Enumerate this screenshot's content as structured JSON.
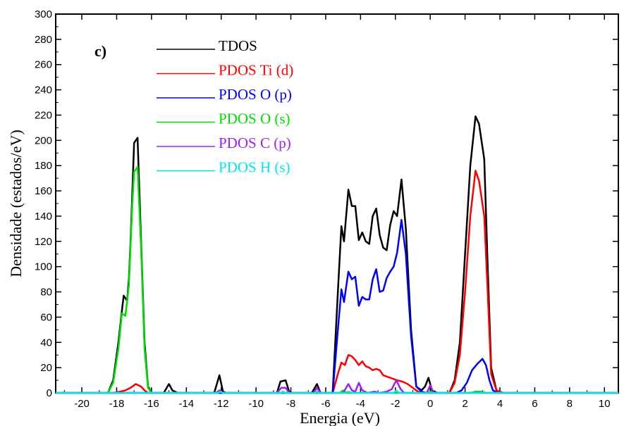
{
  "chart_data": {
    "type": "line",
    "panel_label": "c)",
    "xlabel": "Energia (eV)",
    "ylabel": "Densidade (estados/eV)",
    "xlim": [
      -21.5,
      10.8
    ],
    "ylim": [
      0,
      300
    ],
    "xticks": [
      -20,
      -18,
      -16,
      -14,
      -12,
      -10,
      -8,
      -6,
      -4,
      -2,
      0,
      2,
      4,
      6,
      8,
      10
    ],
    "yticks": [
      0,
      20,
      40,
      60,
      80,
      100,
      120,
      140,
      160,
      180,
      200,
      220,
      240,
      260,
      280,
      300
    ],
    "legend_position": "top-center",
    "series": [
      {
        "name": "TDOS",
        "color": "#000000",
        "points": [
          [
            -21.5,
            0
          ],
          [
            -18.5,
            0
          ],
          [
            -18.2,
            10
          ],
          [
            -17.9,
            40
          ],
          [
            -17.7,
            65
          ],
          [
            -17.6,
            77
          ],
          [
            -17.4,
            73
          ],
          [
            -17.3,
            90
          ],
          [
            -17.2,
            120
          ],
          [
            -17.0,
            198
          ],
          [
            -16.8,
            202
          ],
          [
            -16.6,
            120
          ],
          [
            -16.4,
            40
          ],
          [
            -16.2,
            5
          ],
          [
            -16.0,
            0
          ],
          [
            -15.3,
            0
          ],
          [
            -15.0,
            7
          ],
          [
            -14.8,
            2
          ],
          [
            -14.5,
            0
          ],
          [
            -12.4,
            0
          ],
          [
            -12.1,
            14
          ],
          [
            -11.9,
            1
          ],
          [
            -11.7,
            0
          ],
          [
            -8.8,
            0
          ],
          [
            -8.6,
            9
          ],
          [
            -8.3,
            10
          ],
          [
            -8.1,
            1
          ],
          [
            -7.9,
            0
          ],
          [
            -6.8,
            0
          ],
          [
            -6.5,
            7
          ],
          [
            -6.3,
            0
          ],
          [
            -5.6,
            0
          ],
          [
            -5.3,
            80
          ],
          [
            -5.1,
            132
          ],
          [
            -4.95,
            120
          ],
          [
            -4.7,
            161
          ],
          [
            -4.5,
            148
          ],
          [
            -4.3,
            148
          ],
          [
            -4.1,
            121
          ],
          [
            -3.9,
            127
          ],
          [
            -3.7,
            120
          ],
          [
            -3.5,
            118
          ],
          [
            -3.3,
            140
          ],
          [
            -3.1,
            146
          ],
          [
            -2.9,
            125
          ],
          [
            -2.7,
            115
          ],
          [
            -2.5,
            113
          ],
          [
            -2.3,
            133
          ],
          [
            -2.1,
            144
          ],
          [
            -1.9,
            140
          ],
          [
            -1.65,
            169
          ],
          [
            -1.4,
            130
          ],
          [
            -1.1,
            50
          ],
          [
            -0.8,
            5
          ],
          [
            -0.5,
            2
          ],
          [
            -0.3,
            5
          ],
          [
            -0.1,
            12
          ],
          [
            0.1,
            2
          ],
          [
            0.4,
            0
          ],
          [
            1.1,
            0
          ],
          [
            1.4,
            10
          ],
          [
            1.7,
            40
          ],
          [
            2.0,
            110
          ],
          [
            2.3,
            180
          ],
          [
            2.6,
            219
          ],
          [
            2.8,
            213
          ],
          [
            3.1,
            185
          ],
          [
            3.3,
            100
          ],
          [
            3.5,
            20
          ],
          [
            3.8,
            2
          ],
          [
            4.2,
            0
          ],
          [
            10.8,
            0
          ]
        ]
      },
      {
        "name": "PDOS Ti (d)",
        "color": "#ff0000",
        "points": [
          [
            -21.5,
            0
          ],
          [
            -18.2,
            0
          ],
          [
            -17.8,
            1
          ],
          [
            -17.5,
            2
          ],
          [
            -17.2,
            4
          ],
          [
            -16.9,
            7
          ],
          [
            -16.6,
            5
          ],
          [
            -16.4,
            2
          ],
          [
            -16.2,
            0
          ],
          [
            -5.6,
            0
          ],
          [
            -5.3,
            15
          ],
          [
            -5.1,
            24
          ],
          [
            -4.9,
            22
          ],
          [
            -4.7,
            30
          ],
          [
            -4.5,
            29
          ],
          [
            -4.3,
            26
          ],
          [
            -4.1,
            22
          ],
          [
            -3.9,
            25
          ],
          [
            -3.7,
            21
          ],
          [
            -3.5,
            20
          ],
          [
            -3.3,
            18
          ],
          [
            -3.1,
            19
          ],
          [
            -2.9,
            18
          ],
          [
            -2.7,
            14
          ],
          [
            -2.5,
            13
          ],
          [
            -2.3,
            12
          ],
          [
            -2.1,
            11
          ],
          [
            -1.9,
            10
          ],
          [
            -1.6,
            9
          ],
          [
            -1.3,
            7
          ],
          [
            -1.0,
            4
          ],
          [
            -0.7,
            1
          ],
          [
            -0.4,
            0
          ],
          [
            1.1,
            0
          ],
          [
            1.4,
            8
          ],
          [
            1.7,
            30
          ],
          [
            2.0,
            80
          ],
          [
            2.3,
            140
          ],
          [
            2.6,
            176
          ],
          [
            2.8,
            168
          ],
          [
            3.1,
            140
          ],
          [
            3.3,
            80
          ],
          [
            3.5,
            15
          ],
          [
            3.8,
            2
          ],
          [
            4.2,
            0
          ],
          [
            10.8,
            0
          ]
        ]
      },
      {
        "name": "PDOS O (p)",
        "color": "#0000ff",
        "points": [
          [
            -21.5,
            0
          ],
          [
            -5.6,
            0
          ],
          [
            -5.3,
            50
          ],
          [
            -5.1,
            82
          ],
          [
            -4.95,
            72
          ],
          [
            -4.7,
            96
          ],
          [
            -4.5,
            90
          ],
          [
            -4.3,
            92
          ],
          [
            -4.1,
            69
          ],
          [
            -3.9,
            76
          ],
          [
            -3.7,
            74
          ],
          [
            -3.5,
            74
          ],
          [
            -3.3,
            90
          ],
          [
            -3.1,
            98
          ],
          [
            -2.9,
            80
          ],
          [
            -2.7,
            81
          ],
          [
            -2.5,
            91
          ],
          [
            -2.3,
            96
          ],
          [
            -2.1,
            100
          ],
          [
            -1.9,
            111
          ],
          [
            -1.65,
            137
          ],
          [
            -1.4,
            110
          ],
          [
            -1.1,
            45
          ],
          [
            -0.8,
            5
          ],
          [
            -0.5,
            1
          ],
          [
            -0.2,
            0
          ],
          [
            1.5,
            0
          ],
          [
            1.8,
            2
          ],
          [
            2.1,
            8
          ],
          [
            2.4,
            18
          ],
          [
            2.7,
            23
          ],
          [
            3.0,
            27
          ],
          [
            3.2,
            22
          ],
          [
            3.4,
            10
          ],
          [
            3.6,
            2
          ],
          [
            3.9,
            0
          ],
          [
            10.8,
            0
          ]
        ]
      },
      {
        "name": "PDOS O (s)",
        "color": "#00dd00",
        "points": [
          [
            -21.5,
            0
          ],
          [
            -18.5,
            0
          ],
          [
            -18.2,
            8
          ],
          [
            -17.9,
            35
          ],
          [
            -17.7,
            63
          ],
          [
            -17.5,
            61
          ],
          [
            -17.3,
            85
          ],
          [
            -17.1,
            150
          ],
          [
            -17.0,
            175
          ],
          [
            -16.8,
            179
          ],
          [
            -16.6,
            115
          ],
          [
            -16.4,
            35
          ],
          [
            -16.2,
            4
          ],
          [
            -16.0,
            0
          ],
          [
            -12.2,
            0
          ],
          [
            -12.05,
            1
          ],
          [
            -11.9,
            0
          ],
          [
            -5.2,
            0
          ],
          [
            -5.0,
            2
          ],
          [
            -4.8,
            0
          ],
          [
            -0.2,
            0
          ],
          [
            0.0,
            1
          ],
          [
            0.2,
            0
          ],
          [
            2.3,
            0
          ],
          [
            2.6,
            1
          ],
          [
            2.9,
            1
          ],
          [
            3.2,
            0
          ],
          [
            10.8,
            0
          ]
        ]
      },
      {
        "name": "PDOS C (p)",
        "color": "#a020f0",
        "points": [
          [
            -21.5,
            0
          ],
          [
            -12.3,
            0
          ],
          [
            -12.1,
            2
          ],
          [
            -11.9,
            0
          ],
          [
            -8.8,
            0
          ],
          [
            -8.55,
            4
          ],
          [
            -8.3,
            4
          ],
          [
            -8.1,
            0
          ],
          [
            -6.7,
            0
          ],
          [
            -6.5,
            4
          ],
          [
            -6.3,
            0
          ],
          [
            -5.0,
            0
          ],
          [
            -4.7,
            7
          ],
          [
            -4.5,
            2
          ],
          [
            -4.3,
            1
          ],
          [
            -4.1,
            8
          ],
          [
            -3.9,
            2
          ],
          [
            -3.6,
            0
          ],
          [
            -3.2,
            1
          ],
          [
            -2.9,
            0
          ],
          [
            -2.5,
            1
          ],
          [
            -2.2,
            3
          ],
          [
            -1.95,
            10
          ],
          [
            -1.7,
            3
          ],
          [
            -1.5,
            0
          ],
          [
            -0.2,
            0
          ],
          [
            0.0,
            6
          ],
          [
            0.2,
            0
          ],
          [
            10.8,
            0
          ]
        ]
      },
      {
        "name": "PDOS H (s)",
        "color": "#00e5ee",
        "points": [
          [
            -21.5,
            0
          ],
          [
            -12.2,
            0
          ],
          [
            -12.05,
            1
          ],
          [
            -11.9,
            0
          ],
          [
            -8.6,
            0
          ],
          [
            -8.45,
            1
          ],
          [
            -8.3,
            0
          ],
          [
            -6.6,
            0
          ],
          [
            -6.5,
            1
          ],
          [
            -6.4,
            0
          ],
          [
            -4.9,
            0
          ],
          [
            -4.7,
            1
          ],
          [
            -4.5,
            0
          ],
          [
            -2.1,
            0
          ],
          [
            -1.95,
            2
          ],
          [
            -1.8,
            0
          ],
          [
            10.8,
            0
          ]
        ]
      }
    ]
  }
}
